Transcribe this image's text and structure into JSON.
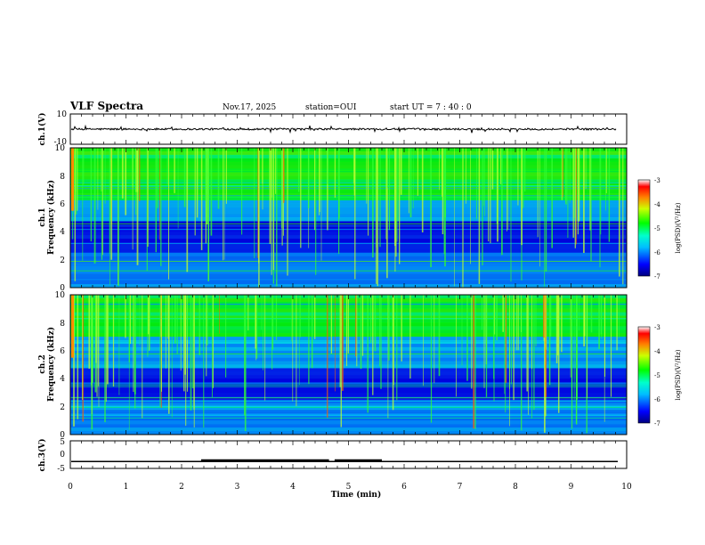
{
  "header": {
    "title": "VLF Spectra",
    "date": "Nov.17, 2025",
    "station": "station=OUI",
    "start_ut": "start  UT =   7 : 40 : 0"
  },
  "chart_data": [
    {
      "type": "line",
      "name": "ch1-waveform",
      "ylabel": "ch.1(V)",
      "ylim": [
        -10,
        10
      ],
      "yticks": [
        "10",
        "-10"
      ],
      "x_range_min": [
        0,
        10
      ],
      "baseline_v": 0,
      "note": "noisy waveform near 0 V with impulsive spikes"
    },
    {
      "type": "heatmap",
      "name": "ch1-spectrogram",
      "ylabel": "ch.1\nFrequency (kHz)",
      "ylabel_line1": "ch.1",
      "ylabel_line2": "Frequency (kHz)",
      "ylim_khz": [
        0,
        10
      ],
      "yticks": [
        "10",
        "8",
        "6",
        "4",
        "2",
        "0"
      ],
      "x_range_min": [
        0,
        10
      ],
      "colorbar": {
        "label": "log(PSD)(V²/Hz)",
        "ticks": [
          "-3",
          "-4",
          "-5",
          "-6",
          "-7"
        ],
        "range": [
          -7,
          -3
        ]
      }
    },
    {
      "type": "heatmap",
      "name": "ch2-spectrogram",
      "ylabel_line1": "ch.2",
      "ylabel_line2": "Frequency (kHz)",
      "ylim_khz": [
        0,
        10
      ],
      "yticks": [
        "10",
        "8",
        "6",
        "4",
        "2",
        "0"
      ],
      "x_range_min": [
        0,
        10
      ],
      "colorbar": {
        "label": "log(PSD)(V²/Hz)",
        "ticks": [
          "-3",
          "-4",
          "-5",
          "-6",
          "-7"
        ],
        "range": [
          -7,
          -3
        ]
      }
    },
    {
      "type": "line",
      "name": "ch3-level",
      "ylabel": "ch.3(V)",
      "ylim": [
        -5,
        5
      ],
      "yticks": [
        "5",
        "0",
        "-5"
      ],
      "baseline_v": -2.5,
      "raised_segments_min": [
        [
          2.35,
          4.65
        ],
        [
          4.75,
          5.6
        ]
      ],
      "raised_level_v": -2.2
    }
  ],
  "x_axis": {
    "label": "Time  (min)",
    "ticks": [
      "0",
      "1",
      "2",
      "3",
      "4",
      "5",
      "6",
      "7",
      "8",
      "9",
      "10"
    ],
    "range": [
      0,
      10
    ]
  },
  "colors": {
    "spec_low": "#00008b",
    "spec_mid": "#00ffff",
    "spec_high": "#00ff00",
    "spec_max": "#ff0000"
  }
}
